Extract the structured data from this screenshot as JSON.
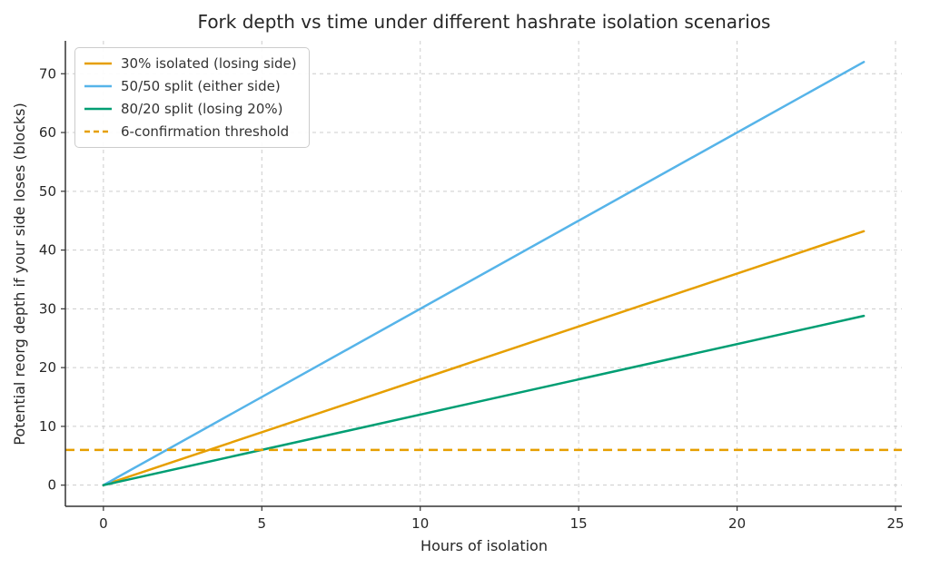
{
  "chart_data": {
    "type": "line",
    "title": "Fork depth vs time under different hashrate isolation scenarios",
    "xlabel": "Hours of isolation",
    "ylabel": "Potential reorg depth if your side loses (blocks)",
    "xlim": [
      -1.2,
      25.2
    ],
    "ylim": [
      -3.6,
      75.6
    ],
    "xticks": [
      0,
      5,
      10,
      15,
      20,
      25
    ],
    "yticks": [
      0,
      10,
      20,
      30,
      40,
      50,
      60,
      70
    ],
    "grid": true,
    "grid_style": "dashed",
    "legend_position": "upper left",
    "series": [
      {
        "name": "30% isolated (losing side)",
        "color": "#E69F00",
        "style": "solid",
        "x": [
          0,
          24
        ],
        "y": [
          0,
          43.2
        ]
      },
      {
        "name": "50/50 split (either side)",
        "color": "#56B4E9",
        "style": "solid",
        "x": [
          0,
          24
        ],
        "y": [
          0,
          72
        ]
      },
      {
        "name": "80/20 split (losing 20%)",
        "color": "#009E73",
        "style": "solid",
        "x": [
          0,
          24
        ],
        "y": [
          0,
          28.8
        ]
      }
    ],
    "threshold": {
      "name": "6-confirmation threshold",
      "color": "#E69F00",
      "style": "dashed",
      "y": 6
    }
  },
  "styling": {
    "grid_color": "#CCCCCC",
    "spine_color": "#333333",
    "text_color": "#262626",
    "line_width": 2.5
  }
}
